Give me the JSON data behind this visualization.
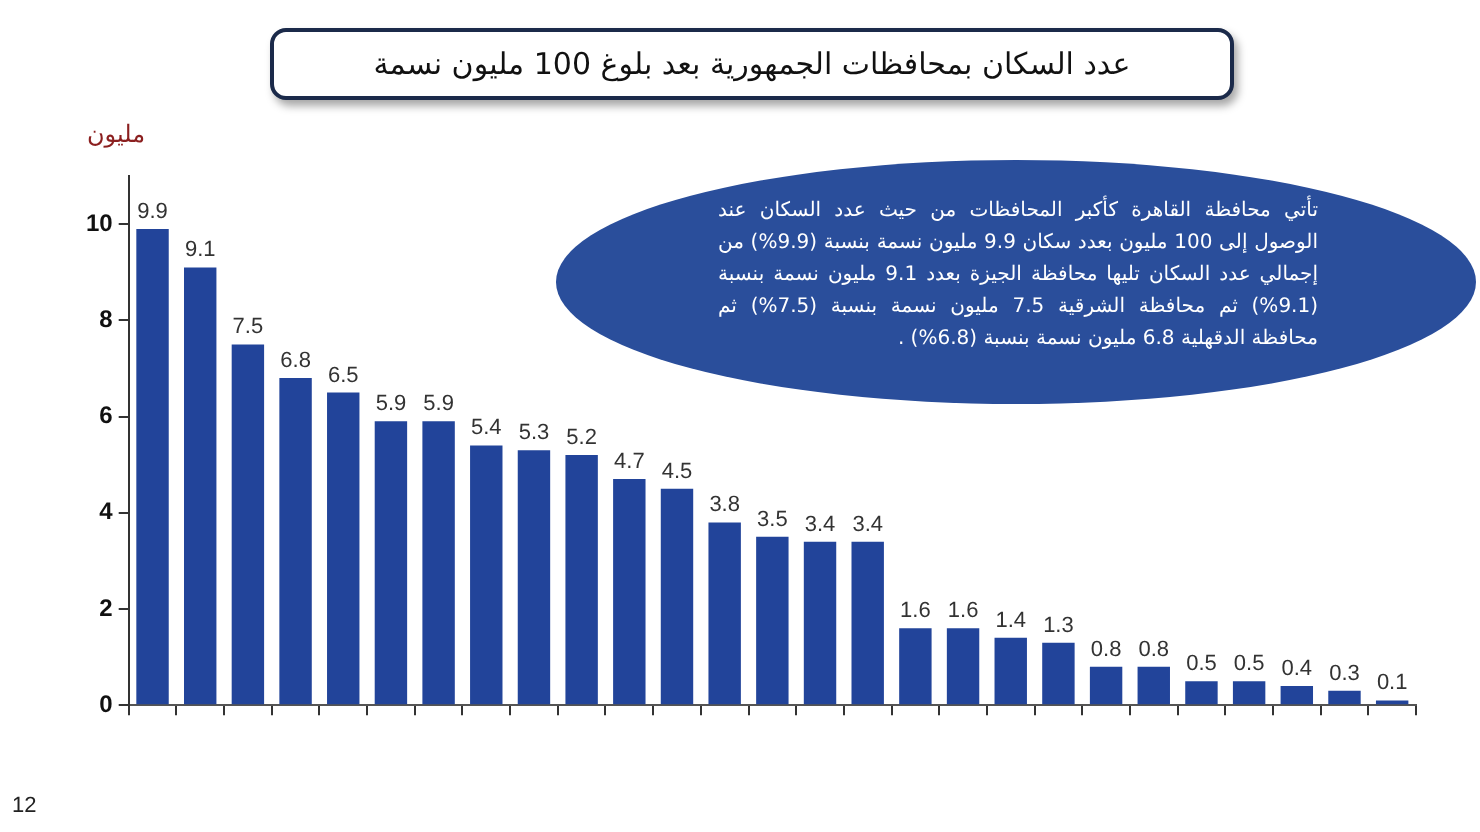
{
  "chart_data": {
    "type": "bar",
    "title": "عدد السكان بمحافظات الجمهورية بعد بلوغ 100 مليون نسمة",
    "ylabel": "مليون",
    "categories": [
      null,
      null,
      null,
      null,
      null,
      null,
      null,
      null,
      null,
      null,
      null,
      null,
      null,
      null,
      null,
      null,
      null,
      null,
      null,
      null,
      null,
      null,
      null,
      null,
      null,
      null,
      null
    ],
    "values": [
      9.9,
      9.1,
      7.5,
      6.8,
      6.5,
      5.9,
      5.9,
      5.4,
      5.3,
      5.2,
      4.7,
      4.5,
      3.8,
      3.5,
      3.4,
      3.4,
      1.6,
      1.6,
      1.4,
      1.3,
      0.8,
      0.8,
      0.5,
      0.5,
      0.4,
      0.3,
      0.1
    ],
    "color": "#22449a",
    "ylim": [
      0,
      11
    ],
    "yticks": [
      0,
      2,
      4,
      6,
      8,
      10
    ],
    "grid": false,
    "data_labels": true,
    "annotations": [
      "تأتي محافظة القاهرة كأكبر المحافظات من حيث عدد السكان عند الوصول إلى 100 مليون بعدد سكان 9.9 مليون نسمة بنسبة (9.9%) من إجمالي عدد السكان تليها محافظة الجيزة بعدد 9.1 مليون نسمة بنسبة (9.1%) ثم محافظة الشرقية 7.5 مليون نسمة بنسبة (7.5%) ثم محافظة الدقهلية 6.8 مليون نسمة بنسبة (6.8%) .",
      "12"
    ]
  }
}
